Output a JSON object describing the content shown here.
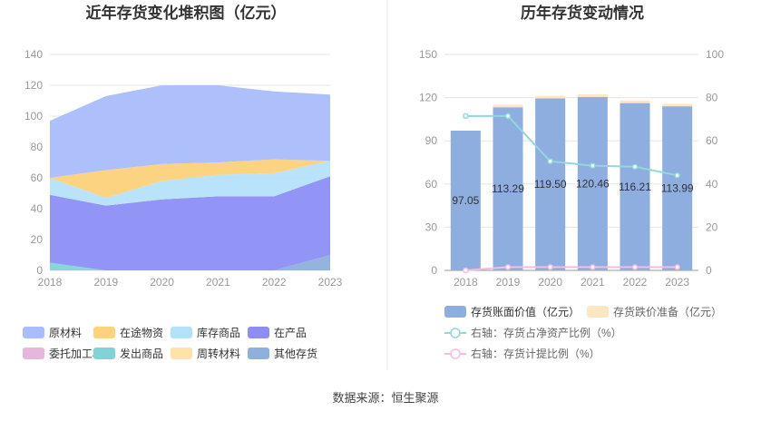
{
  "source": "数据来源：恒生聚源",
  "chart_data": [
    {
      "type": "area",
      "stacked": true,
      "title": "近年存货变化堆积图（亿元）",
      "categories": [
        "2018",
        "2019",
        "2020",
        "2021",
        "2022",
        "2023"
      ],
      "ylim": [
        0,
        140
      ],
      "yticks": [
        0,
        20,
        40,
        60,
        80,
        100,
        120,
        140
      ],
      "series": [
        {
          "name": "其他存货",
          "color": "#8eb0dd",
          "values": [
            0,
            0,
            0,
            0,
            0,
            10
          ]
        },
        {
          "name": "发出商品",
          "color": "#80d4d8",
          "values": [
            5,
            0,
            0,
            0,
            0,
            0
          ]
        },
        {
          "name": "委托加工材料",
          "color": "#e8b6da",
          "values": [
            0,
            0,
            0,
            0,
            0,
            0
          ]
        },
        {
          "name": "在产品",
          "color": "#8c8ef5",
          "values": [
            44,
            42,
            46,
            48,
            48,
            51
          ]
        },
        {
          "name": "库存商品",
          "color": "#b5e2fb",
          "values": [
            11,
            5,
            12,
            14,
            15,
            10
          ]
        },
        {
          "name": "在途物资",
          "color": "#fcd27a",
          "values": [
            0,
            18,
            11,
            8,
            9,
            0
          ]
        },
        {
          "name": "周转材料",
          "color": "#fde3a7",
          "values": [
            0,
            0,
            0,
            0,
            0,
            0
          ]
        },
        {
          "name": "原材料",
          "color": "#a9bdfb",
          "values": [
            37,
            48,
            51,
            50,
            44,
            43
          ]
        }
      ],
      "legend": [
        "原材料",
        "在途物资",
        "库存商品",
        "在产品",
        "委托加工材料",
        "发出商品",
        "周转材料",
        "其他存货"
      ]
    },
    {
      "type": "bar",
      "title": "历年存货变动情况",
      "categories": [
        "2018",
        "2019",
        "2020",
        "2021",
        "2022",
        "2023"
      ],
      "ylim": [
        0,
        150
      ],
      "yticks": [
        0,
        30,
        60,
        90,
        120,
        150
      ],
      "y2lim": [
        0,
        100
      ],
      "y2ticks": [
        0,
        20,
        40,
        60,
        80,
        100
      ],
      "series": [
        {
          "name": "存货账面价值（亿元）",
          "color": "#8eaee0",
          "axis": "left",
          "values": [
            97.05,
            113.29,
            119.5,
            120.46,
            116.21,
            113.99
          ],
          "labels": [
            "97.05",
            "113.29",
            "119.50",
            "120.46",
            "116.21",
            "113.99"
          ]
        },
        {
          "name": "存货跌价准备（亿元）",
          "color": "#fde7c3",
          "axis": "left",
          "values": [
            0,
            1.8,
            1.8,
            1.8,
            1.8,
            1.8
          ]
        },
        {
          "name": "右轴：存货占净资产比例（%）",
          "color": "#8fd8dc",
          "axis": "right",
          "type": "line",
          "values": [
            71.5,
            71.5,
            50.5,
            48.5,
            48,
            44
          ]
        },
        {
          "name": "右轴：存货计提比例（%）",
          "color": "#f2bde0",
          "axis": "right",
          "type": "line",
          "values": [
            0,
            1.5,
            1.5,
            1.5,
            1.5,
            1.5
          ]
        }
      ]
    }
  ]
}
